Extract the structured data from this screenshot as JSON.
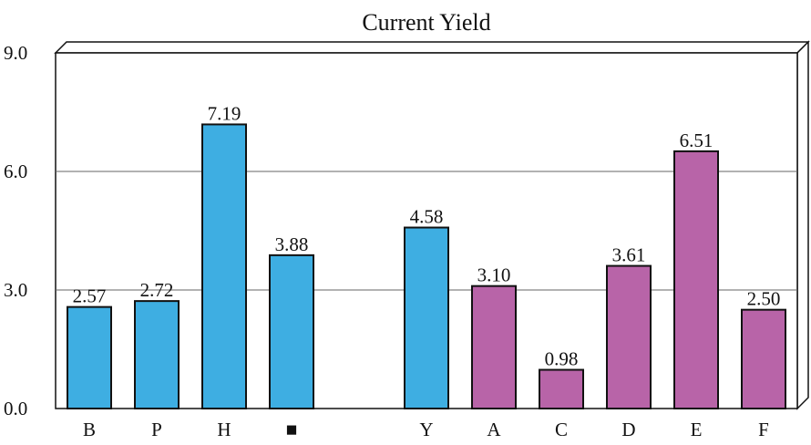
{
  "chart_data": {
    "type": "bar",
    "title": "Current Yield",
    "xlabel": "",
    "ylabel": "",
    "ylim": [
      0,
      9
    ],
    "yticks": [
      "0.0",
      "3.0",
      "6.0",
      "9.0"
    ],
    "grid": true,
    "categories": [
      "B",
      "P",
      "H",
      "■",
      "",
      "Y",
      "A",
      "C",
      "D",
      "E",
      "F"
    ],
    "values": [
      2.57,
      2.72,
      7.19,
      3.88,
      null,
      4.58,
      3.1,
      0.98,
      3.61,
      6.51,
      2.5
    ],
    "value_labels": [
      "2.57",
      "2.72",
      "7.19",
      "3.88",
      "",
      "4.58",
      "3.10",
      "0.98",
      "3.61",
      "6.51",
      "2.50"
    ],
    "bar_colors": [
      "#3eaee2",
      "#3eaee2",
      "#3eaee2",
      "#3eaee2",
      "",
      "#3eaee2",
      "#b864a8",
      "#b864a8",
      "#b864a8",
      "#b864a8",
      "#b864a8"
    ]
  }
}
